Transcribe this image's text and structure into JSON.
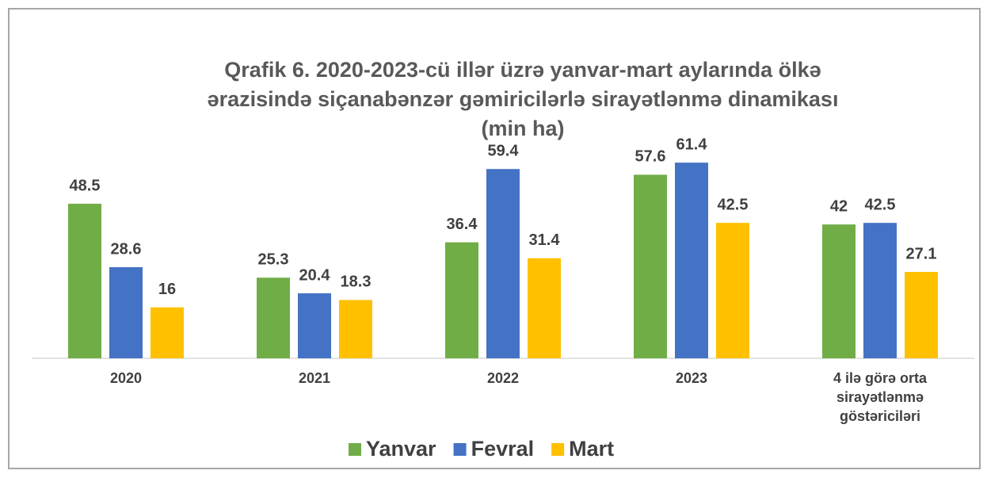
{
  "chart_data": {
    "type": "bar",
    "title": "Qrafik 6. 2020-2023-cü illər üzrə yanvar-mart aylarında ölkə\nərazisində siçanabənzər gəmiricilərlə sirayətlənmə dinamikası\n(min ha)",
    "categories": [
      "2020",
      "2021",
      "2022",
      "2023",
      "4 ilə görə orta\nsirayətlənmə\ngöstəriciləri"
    ],
    "series": [
      {
        "name": "Yanvar",
        "color": "#70ad47",
        "values": [
          48.5,
          25.3,
          36.4,
          57.6,
          42
        ]
      },
      {
        "name": "Fevral",
        "color": "#4472c4",
        "values": [
          28.6,
          20.4,
          59.4,
          61.4,
          42.5
        ]
      },
      {
        "name": "Mart",
        "color": "#ffc000",
        "values": [
          16,
          18.3,
          31.4,
          42.5,
          27.1
        ]
      }
    ],
    "legend": "bottom"
  }
}
